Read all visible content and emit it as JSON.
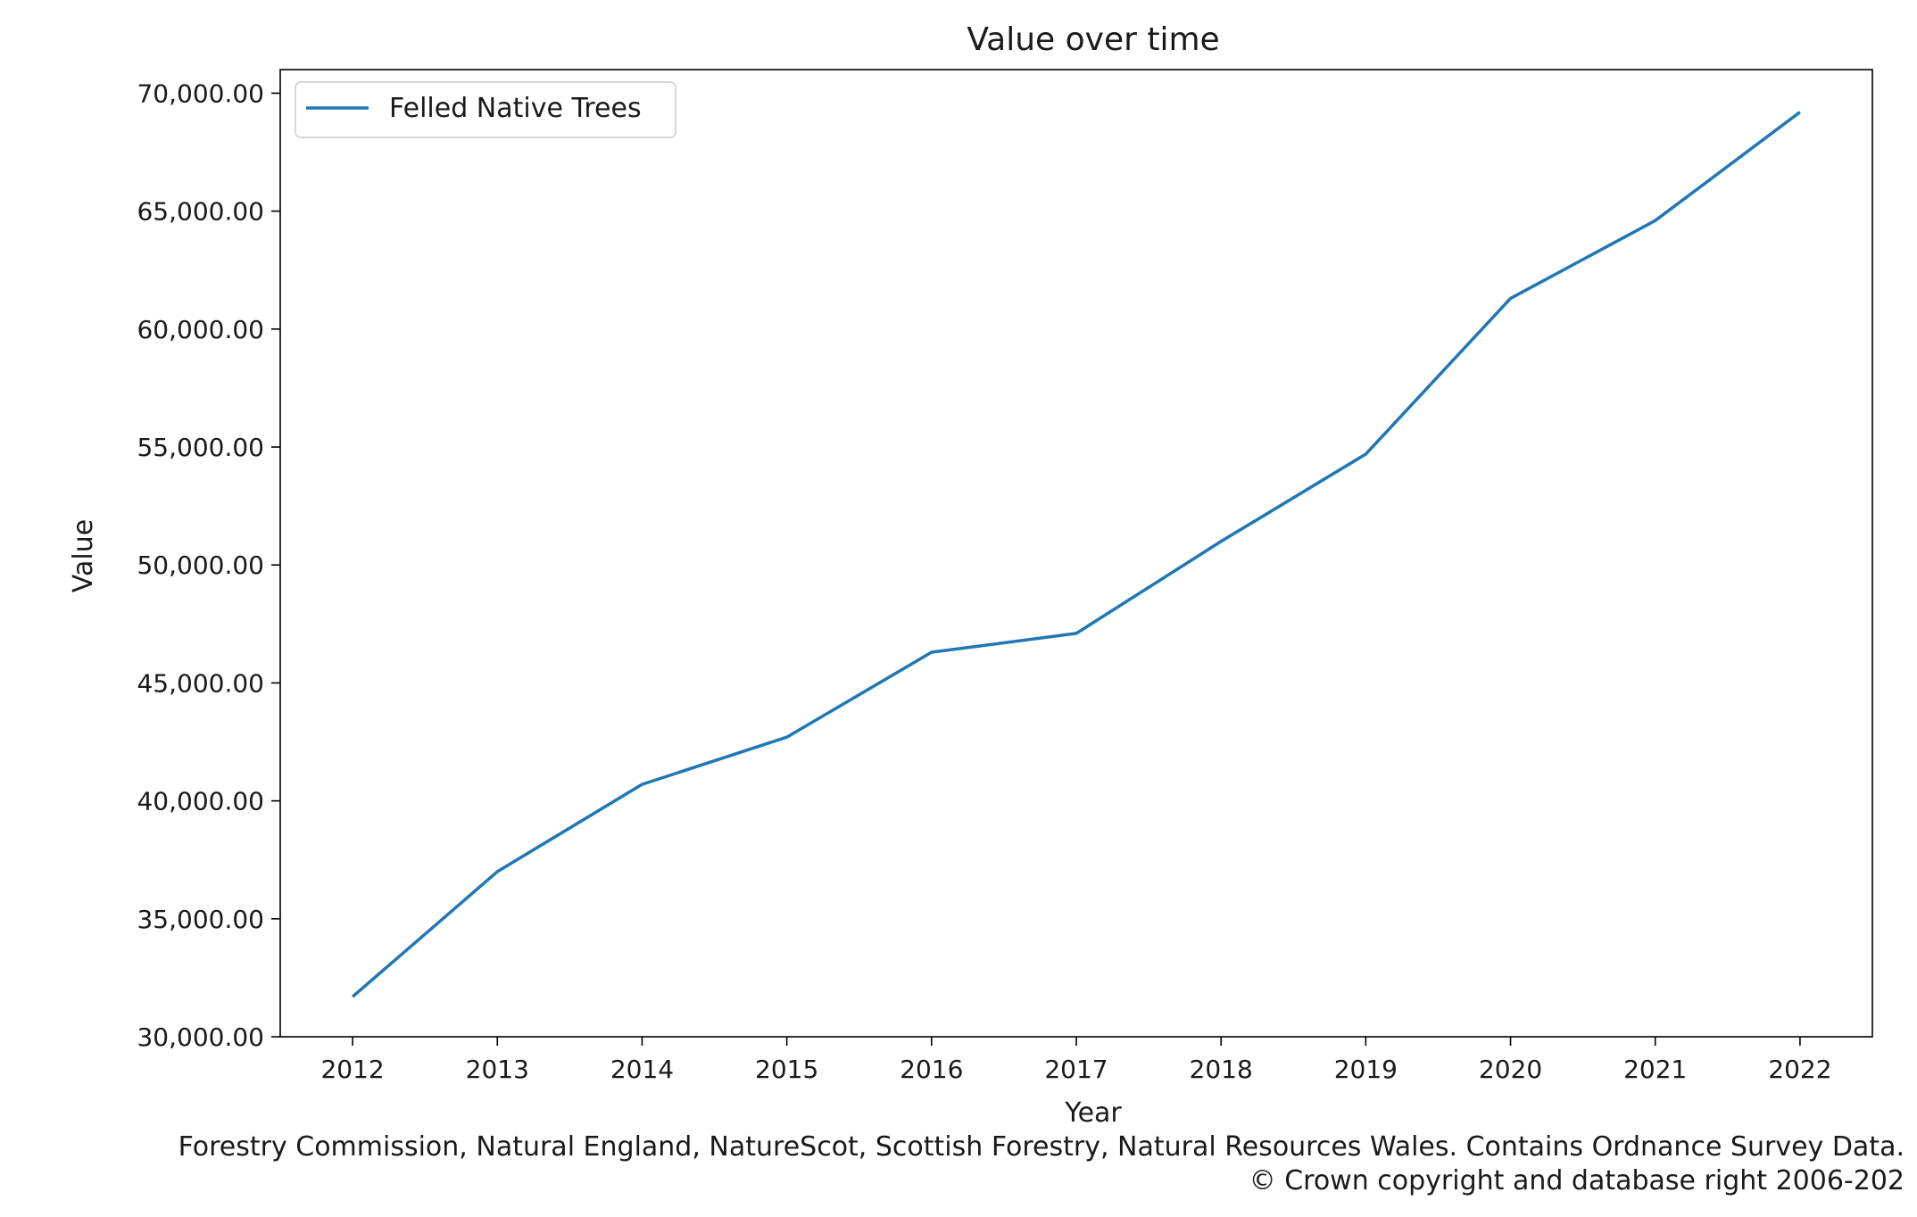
{
  "chart_data": {
    "type": "line",
    "title": "Value over time",
    "xlabel": "Year",
    "ylabel": "Value",
    "x": [
      2012,
      2013,
      2014,
      2015,
      2016,
      2017,
      2018,
      2019,
      2020,
      2021,
      2022
    ],
    "series": [
      {
        "name": "Felled Native Trees",
        "color": "#1f77b4",
        "values": [
          31700,
          37000,
          40700,
          42700,
          46300,
          47100,
          51000,
          54700,
          61300,
          64600,
          69200
        ]
      }
    ],
    "xlim": [
      2011.5,
      2022.5
    ],
    "ylim": [
      30000,
      71000
    ],
    "yticks": [
      30000,
      35000,
      40000,
      45000,
      50000,
      55000,
      60000,
      65000,
      70000
    ],
    "ytick_labels": [
      "30,000.00",
      "35,000.00",
      "40,000.00",
      "45,000.00",
      "50,000.00",
      "55,000.00",
      "60,000.00",
      "65,000.00",
      "70,000.00"
    ],
    "xtick_labels": [
      "2012",
      "2013",
      "2014",
      "2015",
      "2016",
      "2017",
      "2018",
      "2019",
      "2020",
      "2021",
      "2022"
    ],
    "legend_position": "top-left",
    "grid": false
  },
  "source": {
    "line1": "Forestry Commission, Natural England, NatureScot, Scottish Forestry, Natural Resources Wales. Contains Ordnance Survey Data.",
    "line2": "© Crown copyright and database right 2006-202"
  }
}
